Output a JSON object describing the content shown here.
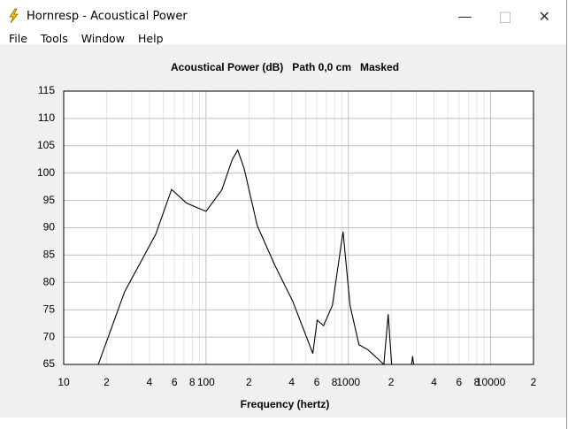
{
  "window": {
    "title": "Hornresp - Acoustical Power",
    "menu": [
      "File",
      "Tools",
      "Window",
      "Help"
    ]
  },
  "chart_data": {
    "type": "line",
    "title": "Acoustical Power (dB)   Path 0,0 cm   Masked",
    "x_label": "Frequency (hertz)",
    "x_scale": "log",
    "grid": true,
    "xlim": [
      10,
      20000
    ],
    "ylim": [
      65,
      115
    ],
    "xticks": [
      10,
      {
        "value": 20,
        "label": "2"
      },
      {
        "value": 40,
        "label": "4"
      },
      {
        "value": 60,
        "label": "6"
      },
      {
        "value": 80,
        "label": "8"
      },
      100,
      {
        "value": 200,
        "label": "2"
      },
      {
        "value": 400,
        "label": "4"
      },
      {
        "value": 600,
        "label": "6"
      },
      {
        "value": 800,
        "label": "8"
      },
      1000,
      {
        "value": 2000,
        "label": "2"
      },
      {
        "value": 4000,
        "label": "4"
      },
      {
        "value": 6000,
        "label": "6"
      },
      {
        "value": 8000,
        "label": "8"
      },
      10000,
      {
        "value": 20000,
        "label": "2"
      }
    ],
    "xminorticks": [
      30,
      50,
      70,
      90,
      300,
      500,
      700,
      900,
      3000,
      5000,
      7000,
      9000
    ],
    "yticks": [
      65,
      70,
      75,
      80,
      85,
      90,
      95,
      100,
      105,
      110,
      115
    ],
    "series": [
      {
        "color": "#000000",
        "x": [
          17.5,
          26.8,
          44.3,
          57.3,
          73,
          100,
          129,
          153,
          167,
          185,
          229,
          305,
          406,
          563,
          604,
          670,
          773,
          918,
          1028,
          1188,
          1371,
          1777,
          1906,
          2015,
          null,
          2780,
          2830,
          2880
        ],
        "values": [
          65,
          78.3,
          88.8,
          97.0,
          94.5,
          93.0,
          96.9,
          102.5,
          104.2,
          100.9,
          90.4,
          83.1,
          76.6,
          67,
          73.1,
          72.1,
          75.8,
          89.3,
          75.8,
          68.6,
          67.7,
          65,
          74.2,
          65,
          null,
          65,
          66.5,
          65
        ]
      }
    ]
  }
}
